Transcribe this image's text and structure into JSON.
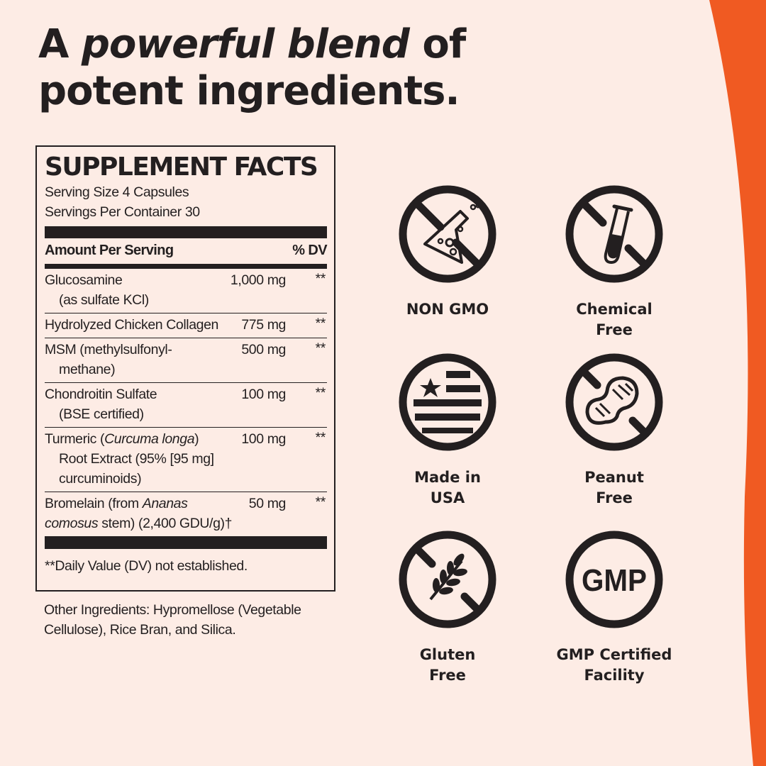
{
  "colors": {
    "background": "#fdece5",
    "accent": "#f05a22",
    "text": "#231f20"
  },
  "headline": {
    "pre": "A ",
    "emphasis": "powerful blend",
    "post": " of",
    "line2": "potent ingredients."
  },
  "facts": {
    "title": "SUPPLEMENT FACTS",
    "serving_size": "Serving Size 4 Capsules",
    "servings_per_container": "Servings Per Container 30",
    "amount_header": "Amount Per Serving",
    "dv_header": "% DV",
    "rows": [
      {
        "name": "Glucosamine",
        "sub": "(as sulfate KCl)",
        "amount": "1,000 mg",
        "dv": "**"
      },
      {
        "name": "Hydrolyzed Chicken Collagen",
        "sub": "",
        "amount": "775 mg",
        "dv": "**"
      },
      {
        "name": "MSM (methylsulfonyl-",
        "sub": "methane)",
        "amount": "500 mg",
        "dv": "**"
      },
      {
        "name": "Chondroitin Sulfate",
        "sub": "(BSE certified)",
        "amount": "100 mg",
        "dv": "**"
      },
      {
        "name_a": "Turmeric (",
        "name_i": "Curcuma longa",
        "name_b": ")",
        "sub": "Root Extract (95% [95 mg]",
        "sub2": "curcuminoids)",
        "amount": "100 mg",
        "dv": "**"
      },
      {
        "name_a": "Bromelain (from ",
        "name_i": "Ananas",
        "sub_i": "comosus",
        "sub_b": " stem) (2,400 GDU/g)†",
        "amount": "50 mg",
        "dv": "**"
      }
    ],
    "footnote": "**Daily Value (DV) not established."
  },
  "other_ingredients": "Other Ingredients: Hypromellose (Vegetable Cellulose), Rice Bran, and Silica.",
  "badges": [
    {
      "icon": "no-flask-icon",
      "line1": "NON GMO",
      "line2": ""
    },
    {
      "icon": "no-test-tube-icon",
      "line1": "Chemical",
      "line2": "Free"
    },
    {
      "icon": "usa-flag-icon",
      "line1": "Made in",
      "line2": "USA"
    },
    {
      "icon": "no-peanut-icon",
      "line1": "Peanut",
      "line2": "Free"
    },
    {
      "icon": "no-wheat-icon",
      "line1": "Gluten",
      "line2": "Free"
    },
    {
      "icon": "gmp-icon",
      "line1": "GMP Certified",
      "line2": "Facility",
      "gmp_text": "GMP"
    }
  ]
}
